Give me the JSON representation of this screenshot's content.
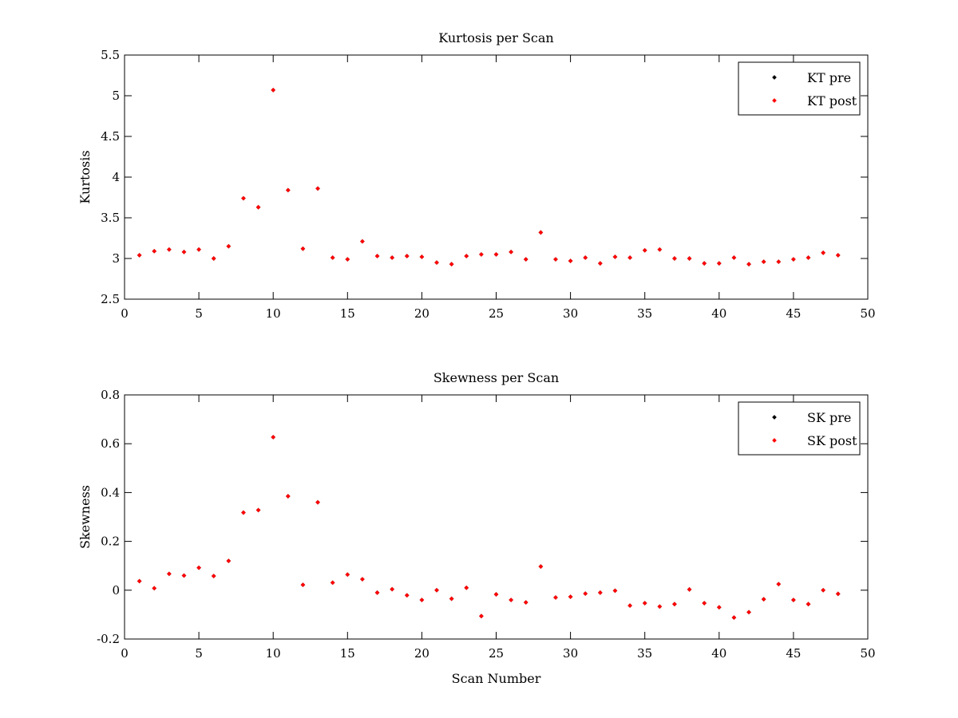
{
  "figure": {
    "background": "#ffffff"
  },
  "chart_data": [
    {
      "type": "scatter",
      "title": "Kurtosis per Scan",
      "xlabel": "",
      "ylabel": "Kurtosis",
      "xlim": [
        0,
        50
      ],
      "ylim": [
        2.5,
        5.5
      ],
      "xticks": [
        0,
        5,
        10,
        15,
        20,
        25,
        30,
        35,
        40,
        45,
        50
      ],
      "xtick_labels": [
        "0",
        "5",
        "10",
        "15",
        "20",
        "25",
        "30",
        "35",
        "40",
        "45",
        "50"
      ],
      "yticks": [
        2.5,
        3,
        3.5,
        4,
        4.5,
        5,
        5.5
      ],
      "ytick_labels": [
        "2.5",
        "3",
        "3.5",
        "4",
        "4.5",
        "5",
        "5.5"
      ],
      "grid": false,
      "legend_position": "top-right",
      "series": [
        {
          "name": "KT pre",
          "color": "#000000",
          "x": [
            1,
            2,
            3,
            4,
            5,
            6,
            7,
            8,
            9,
            10,
            11,
            12,
            13,
            14,
            15,
            16,
            17,
            18,
            19,
            20,
            21,
            22,
            23,
            24,
            25,
            26,
            27,
            28,
            29,
            30,
            31,
            32,
            33,
            34,
            35,
            36,
            37,
            38,
            39,
            40,
            41,
            42,
            43,
            44,
            45,
            46,
            47,
            48
          ],
          "y": [
            3.04,
            3.09,
            3.11,
            3.08,
            3.11,
            3.0,
            3.15,
            3.74,
            3.63,
            5.07,
            3.84,
            3.12,
            3.86,
            3.01,
            2.99,
            3.21,
            3.03,
            3.01,
            3.03,
            3.02,
            2.95,
            2.93,
            3.03,
            3.05,
            3.05,
            3.08,
            2.99,
            3.32,
            2.99,
            2.97,
            3.01,
            2.94,
            3.02,
            3.01,
            3.1,
            3.11,
            3.0,
            3.0,
            2.94,
            2.94,
            3.01,
            2.93,
            2.96,
            2.96,
            2.99,
            3.01,
            3.07,
            3.04
          ]
        },
        {
          "name": "KT post",
          "color": "#ff0000",
          "x": [
            1,
            2,
            3,
            4,
            5,
            6,
            7,
            8,
            9,
            10,
            11,
            12,
            13,
            14,
            15,
            16,
            17,
            18,
            19,
            20,
            21,
            22,
            23,
            24,
            25,
            26,
            27,
            28,
            29,
            30,
            31,
            32,
            33,
            34,
            35,
            36,
            37,
            38,
            39,
            40,
            41,
            42,
            43,
            44,
            45,
            46,
            47,
            48
          ],
          "y": [
            3.04,
            3.09,
            3.11,
            3.08,
            3.11,
            3.0,
            3.15,
            3.74,
            3.63,
            5.07,
            3.84,
            3.12,
            3.86,
            3.01,
            2.99,
            3.21,
            3.03,
            3.01,
            3.03,
            3.02,
            2.95,
            2.93,
            3.03,
            3.05,
            3.05,
            3.08,
            2.99,
            3.32,
            2.99,
            2.97,
            3.01,
            2.94,
            3.02,
            3.01,
            3.1,
            3.11,
            3.0,
            3.0,
            2.94,
            2.94,
            3.01,
            2.93,
            2.96,
            2.96,
            2.99,
            3.01,
            3.07,
            3.04
          ]
        }
      ]
    },
    {
      "type": "scatter",
      "title": "Skewness per Scan",
      "xlabel": "Scan Number",
      "ylabel": "Skewness",
      "xlim": [
        0,
        50
      ],
      "ylim": [
        -0.2,
        0.8
      ],
      "xticks": [
        0,
        5,
        10,
        15,
        20,
        25,
        30,
        35,
        40,
        45,
        50
      ],
      "xtick_labels": [
        "0",
        "5",
        "10",
        "15",
        "20",
        "25",
        "30",
        "35",
        "40",
        "45",
        "50"
      ],
      "yticks": [
        -0.2,
        0,
        0.2,
        0.4,
        0.6,
        0.8
      ],
      "ytick_labels": [
        "-0.2",
        "0",
        "0.2",
        "0.4",
        "0.6",
        "0.8"
      ],
      "grid": false,
      "legend_position": "top-right",
      "series": [
        {
          "name": "SK pre",
          "color": "#000000",
          "x": [
            1,
            2,
            3,
            4,
            5,
            6,
            7,
            8,
            9,
            10,
            11,
            12,
            13,
            14,
            15,
            16,
            17,
            18,
            19,
            20,
            21,
            22,
            23,
            24,
            25,
            26,
            27,
            28,
            29,
            30,
            31,
            32,
            33,
            34,
            35,
            36,
            37,
            38,
            39,
            40,
            41,
            42,
            43,
            44,
            45,
            46,
            47,
            48
          ],
          "y": [
            0.037,
            0.008,
            0.067,
            0.06,
            0.092,
            0.058,
            0.12,
            0.318,
            0.328,
            0.627,
            0.385,
            0.022,
            0.36,
            0.031,
            0.064,
            0.045,
            -0.01,
            0.004,
            -0.021,
            -0.04,
            0.0,
            -0.035,
            0.01,
            -0.106,
            -0.017,
            -0.04,
            -0.05,
            0.097,
            -0.03,
            -0.027,
            -0.014,
            -0.01,
            -0.002,
            -0.063,
            -0.053,
            -0.067,
            -0.057,
            0.003,
            -0.053,
            -0.07,
            -0.112,
            -0.09,
            -0.037,
            0.025,
            -0.04,
            -0.057,
            0.0,
            -0.015
          ]
        },
        {
          "name": "SK post",
          "color": "#ff0000",
          "x": [
            1,
            2,
            3,
            4,
            5,
            6,
            7,
            8,
            9,
            10,
            11,
            12,
            13,
            14,
            15,
            16,
            17,
            18,
            19,
            20,
            21,
            22,
            23,
            24,
            25,
            26,
            27,
            28,
            29,
            30,
            31,
            32,
            33,
            34,
            35,
            36,
            37,
            38,
            39,
            40,
            41,
            42,
            43,
            44,
            45,
            46,
            47,
            48
          ],
          "y": [
            0.037,
            0.008,
            0.067,
            0.06,
            0.092,
            0.058,
            0.12,
            0.318,
            0.328,
            0.627,
            0.385,
            0.022,
            0.36,
            0.031,
            0.064,
            0.045,
            -0.01,
            0.004,
            -0.021,
            -0.04,
            0.0,
            -0.035,
            0.01,
            -0.106,
            -0.017,
            -0.04,
            -0.05,
            0.097,
            -0.03,
            -0.027,
            -0.014,
            -0.01,
            -0.002,
            -0.063,
            -0.053,
            -0.067,
            -0.057,
            0.003,
            -0.053,
            -0.07,
            -0.112,
            -0.09,
            -0.037,
            0.025,
            -0.04,
            -0.057,
            0.0,
            -0.015
          ]
        }
      ]
    }
  ]
}
